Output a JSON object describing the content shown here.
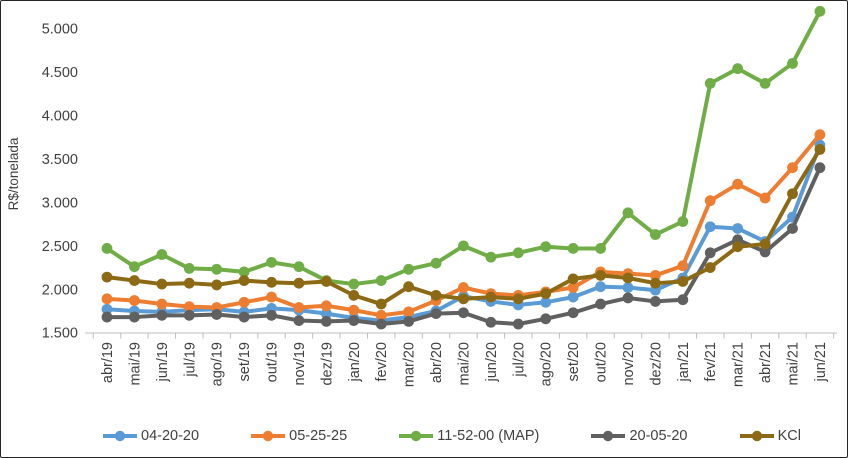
{
  "chart_data": {
    "type": "line",
    "title": "",
    "xlabel": "",
    "ylabel": "R$/tonelada",
    "ylim": [
      1500,
      5250
    ],
    "yticks": [
      1500,
      2000,
      2500,
      3000,
      3500,
      4000,
      4500,
      5000
    ],
    "ytick_labels": [
      "1.500",
      "2.000",
      "2.500",
      "3.000",
      "3.500",
      "4.000",
      "4.500",
      "5.000"
    ],
    "grid": false,
    "legend_position": "bottom",
    "marker": "circle",
    "categories": [
      "abr/19",
      "mai/19",
      "jun/19",
      "jul/19",
      "ago/19",
      "set/19",
      "out/19",
      "nov/19",
      "dez/19",
      "jan/20",
      "fev/20",
      "mar/20",
      "abr/20",
      "mai/20",
      "jun/20",
      "jul/20",
      "ago/20",
      "set/20",
      "out/20",
      "nov/20",
      "dez/20",
      "jan/21",
      "fev/21",
      "mar/21",
      "abr/21",
      "mai/21",
      "jun/21"
    ],
    "series": [
      {
        "name": "04-20-20",
        "color": "#5B9BD5",
        "values": [
          1770,
          1750,
          1740,
          1760,
          1770,
          1740,
          1780,
          1760,
          1720,
          1670,
          1640,
          1680,
          1750,
          1920,
          1860,
          1820,
          1850,
          1910,
          2030,
          2020,
          1990,
          2130,
          2720,
          2700,
          2550,
          2830,
          3660
        ]
      },
      {
        "name": "05-25-25",
        "color": "#ED7D31",
        "values": [
          1890,
          1870,
          1830,
          1800,
          1790,
          1850,
          1910,
          1790,
          1810,
          1760,
          1700,
          1740,
          1870,
          2020,
          1950,
          1930,
          1970,
          2020,
          2200,
          2180,
          2160,
          2270,
          3020,
          3210,
          3050,
          3400,
          3780
        ]
      },
      {
        "name": "11-52-00 (MAP)",
        "color": "#70AD47",
        "values": [
          2470,
          2260,
          2400,
          2240,
          2230,
          2200,
          2310,
          2260,
          2100,
          2060,
          2100,
          2230,
          2300,
          2500,
          2370,
          2420,
          2490,
          2470,
          2470,
          2880,
          2630,
          2780,
          4370,
          4540,
          4370,
          4600,
          5200
        ]
      },
      {
        "name": "20-05-20",
        "color": "#606060",
        "values": [
          1680,
          1680,
          1700,
          1700,
          1710,
          1680,
          1700,
          1640,
          1630,
          1640,
          1600,
          1630,
          1720,
          1730,
          1620,
          1600,
          1660,
          1730,
          1830,
          1900,
          1860,
          1880,
          2420,
          2570,
          2430,
          2700,
          3400
        ]
      },
      {
        "name": "KCl",
        "color": "#8C6A15",
        "values": [
          2140,
          2100,
          2060,
          2070,
          2050,
          2100,
          2080,
          2070,
          2090,
          1930,
          1830,
          2030,
          1930,
          1890,
          1910,
          1890,
          1950,
          2120,
          2160,
          2130,
          2070,
          2090,
          2250,
          2490,
          2520,
          3100,
          3610
        ]
      }
    ]
  }
}
